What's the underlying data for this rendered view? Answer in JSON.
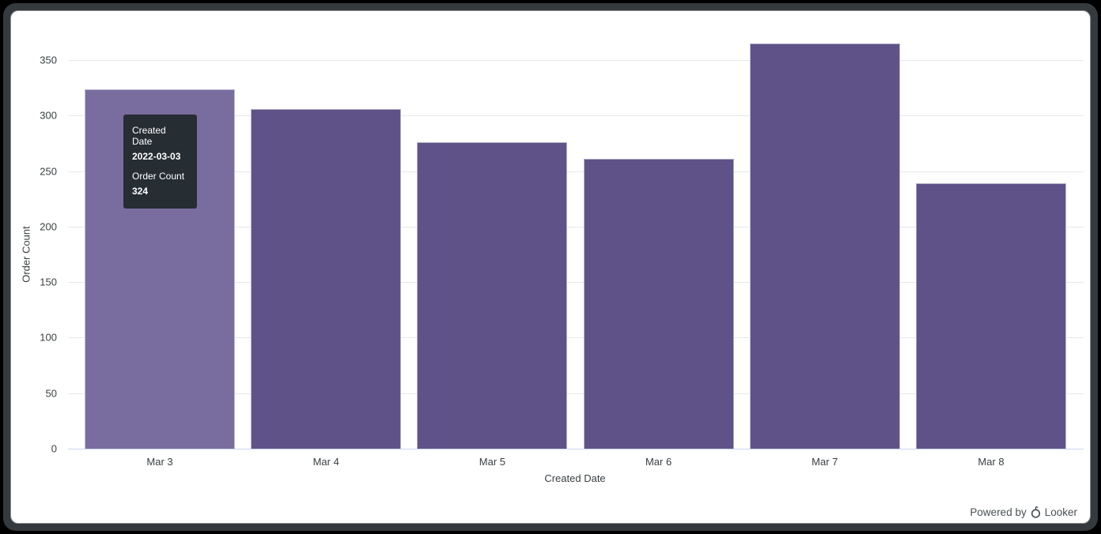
{
  "chart_data": {
    "type": "bar",
    "title": "",
    "categories": [
      "Mar 3",
      "Mar 4",
      "Mar 5",
      "Mar 6",
      "Mar 7",
      "Mar 8"
    ],
    "values": [
      324,
      306,
      276,
      261,
      365,
      239
    ],
    "xlabel": "Created Date",
    "ylabel": "Order Count",
    "ylim": [
      0,
      350
    ],
    "yticks": [
      0,
      50,
      100,
      150,
      200,
      250,
      300,
      350
    ],
    "grid": true,
    "legend": "none",
    "hovered_index": 0,
    "colors": {
      "bar": "#5e5289",
      "bar_hover": "#796da0",
      "grid": "#e8e8e8",
      "axis_line": "#ccd6eb",
      "tooltip_bg": "#262d33"
    }
  },
  "tooltip": {
    "rows": [
      {
        "label": "Created Date",
        "value": "2022-03-03"
      },
      {
        "label": "Order Count",
        "value": "324"
      }
    ]
  },
  "footer": {
    "powered_by": "Powered by",
    "brand": "Looker"
  }
}
